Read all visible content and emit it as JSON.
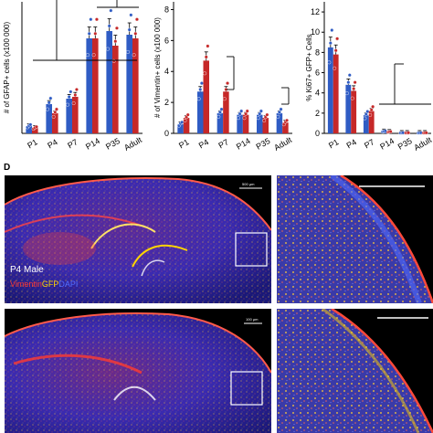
{
  "chart_data": [
    {
      "type": "bar",
      "ylabel": "# of GFAP+ cells (x100 000)",
      "categories": [
        "P1",
        "P4",
        "P7",
        "P14",
        "P35",
        "Adult"
      ],
      "ylim": [
        0,
        3.6
      ],
      "series": [
        {
          "color": "#2f5cc4",
          "values": [
            0.2,
            0.8,
            0.95,
            2.6,
            2.8,
            2.7
          ]
        },
        {
          "color": "#c62828",
          "values": [
            0.15,
            0.55,
            1.0,
            2.6,
            2.4,
            2.6
          ]
        }
      ],
      "grid": false,
      "significance_brackets": true
    },
    {
      "type": "bar",
      "ylabel": "# of Vimentin+ cells (x100 000)",
      "categories": [
        "P1",
        "P4",
        "P7",
        "P14",
        "P35",
        "Adult"
      ],
      "yticks": [
        0,
        2,
        4,
        6,
        8
      ],
      "ylim": [
        0,
        8.5
      ],
      "series": [
        {
          "color": "#2f5cc4",
          "values": [
            0.6,
            2.7,
            1.3,
            1.2,
            1.2,
            1.3
          ]
        },
        {
          "color": "#c62828",
          "values": [
            1.0,
            4.7,
            2.7,
            1.2,
            1.0,
            0.7
          ]
        }
      ],
      "grid": false,
      "significance_brackets": true
    },
    {
      "type": "bar",
      "ylabel": "% Ki67+ GFP+ Cells",
      "categories": [
        "P1",
        "P4",
        "P7",
        "P14",
        "P35",
        "Adult"
      ],
      "yticks": [
        0,
        2,
        4,
        6,
        8,
        10,
        12
      ],
      "ylim": [
        0,
        13
      ],
      "series": [
        {
          "color": "#2f5cc4",
          "values": [
            8.5,
            4.8,
            1.8,
            0.2,
            0.05,
            0.05
          ]
        },
        {
          "color": "#c62828",
          "values": [
            7.8,
            4.2,
            2.2,
            0.15,
            0.05,
            0.05
          ]
        }
      ],
      "grid": false,
      "significance_brackets": true
    }
  ],
  "figure": {
    "panel_letter": "D",
    "micro_label_line1": "P4 Male",
    "micro_label_line2": [
      "Vimentin",
      "GFP",
      "DAPI"
    ],
    "stain_colors": [
      "#ff3b30",
      "#ffd400",
      "#4f6bff"
    ],
    "scale_bar_text_top": "500 µm",
    "scale_bar_text_bottom": "100 µm"
  }
}
